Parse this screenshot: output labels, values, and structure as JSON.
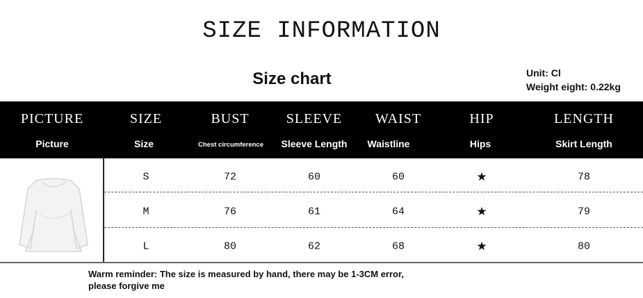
{
  "title": "SIZE INFORMATION",
  "chart_title": "Size chart",
  "unit": "Unit: Cl",
  "weight": "Weight eight: 0.22kg",
  "columns": [
    {
      "en": "PICTURE",
      "sub": "Picture"
    },
    {
      "en": "SIZE",
      "sub": "Size"
    },
    {
      "en": "BUST",
      "sub": "Chest circumference"
    },
    {
      "en": "SLEEVE",
      "sub": "Sleeve Length"
    },
    {
      "en": "WAIST",
      "sub": "Waistline"
    },
    {
      "en": "HIP",
      "sub": "Hips"
    },
    {
      "en": "LENGTH",
      "sub": "Skirt Length"
    }
  ],
  "rows": [
    {
      "size": "S",
      "bust": "72",
      "sleeve": "60",
      "waist": "60",
      "hip": "★",
      "length": "78"
    },
    {
      "size": "M",
      "bust": "76",
      "sleeve": "61",
      "waist": "64",
      "hip": "★",
      "length": "79"
    },
    {
      "size": "L",
      "bust": "80",
      "sleeve": "62",
      "waist": "68",
      "hip": "★",
      "length": "80"
    }
  ],
  "note": "Warm reminder: The size is measured by hand, there may be 1-3CM error, please forgive me"
}
